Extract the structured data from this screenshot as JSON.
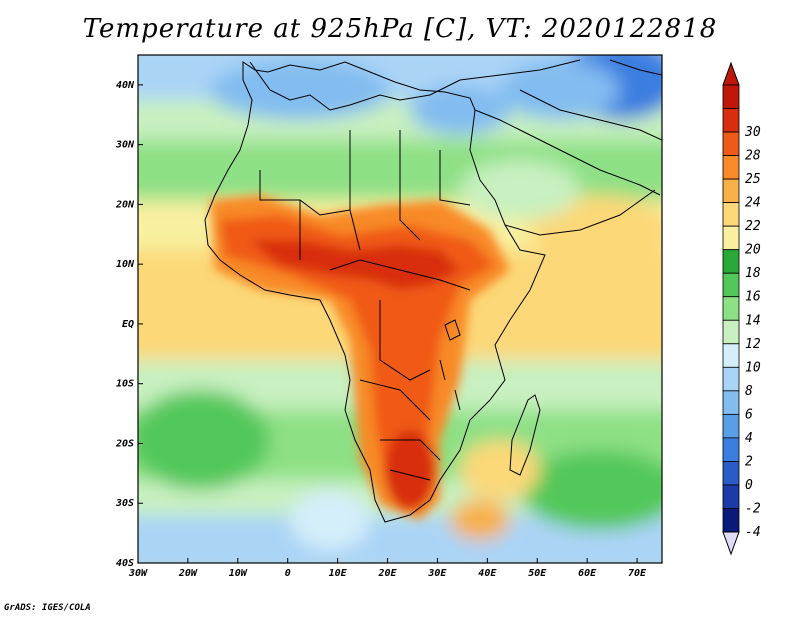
{
  "title": "Temperature at 925hPa [C], VT: 2020122818",
  "credit": "GrADS: IGES/COLA",
  "map": {
    "lon_range": [
      -30,
      75
    ],
    "lat_range": [
      -40,
      45
    ],
    "lat_ticks": [
      {
        "value": 40,
        "label": "40N"
      },
      {
        "value": 30,
        "label": "30N"
      },
      {
        "value": 20,
        "label": "20N"
      },
      {
        "value": 10,
        "label": "10N"
      },
      {
        "value": 0,
        "label": "EQ"
      },
      {
        "value": -10,
        "label": "10S"
      },
      {
        "value": -20,
        "label": "20S"
      },
      {
        "value": -30,
        "label": "30S"
      },
      {
        "value": -40,
        "label": "40S"
      }
    ],
    "lon_ticks": [
      {
        "value": -30,
        "label": "30W"
      },
      {
        "value": -20,
        "label": "20W"
      },
      {
        "value": -10,
        "label": "10W"
      },
      {
        "value": 0,
        "label": "0"
      },
      {
        "value": 10,
        "label": "10E"
      },
      {
        "value": 20,
        "label": "20E"
      },
      {
        "value": 30,
        "label": "30E"
      },
      {
        "value": 40,
        "label": "40E"
      },
      {
        "value": 50,
        "label": "50E"
      },
      {
        "value": 60,
        "label": "60E"
      },
      {
        "value": 70,
        "label": "70E"
      }
    ]
  },
  "colorbar": {
    "levels": [
      "-4",
      "-2",
      "0",
      "2",
      "4",
      "6",
      "8",
      "10",
      "12",
      "14",
      "16",
      "18",
      "20",
      "22",
      "24",
      "25",
      "28",
      "30"
    ],
    "colors": [
      "#0a1a7a",
      "#1c3aa8",
      "#2a5cc8",
      "#3a7ee0",
      "#5a9ee8",
      "#82bcf0",
      "#aad4f6",
      "#d4eefa",
      "#c8f0c0",
      "#8ee086",
      "#52c85a",
      "#2aa838",
      "#f8f0a0",
      "#fcd878",
      "#f8b048",
      "#f88a28",
      "#f05a18",
      "#d82e10",
      "#c01808"
    ],
    "low_cap_color": "#e0dcf8",
    "high_cap_color": "#c01808"
  }
}
